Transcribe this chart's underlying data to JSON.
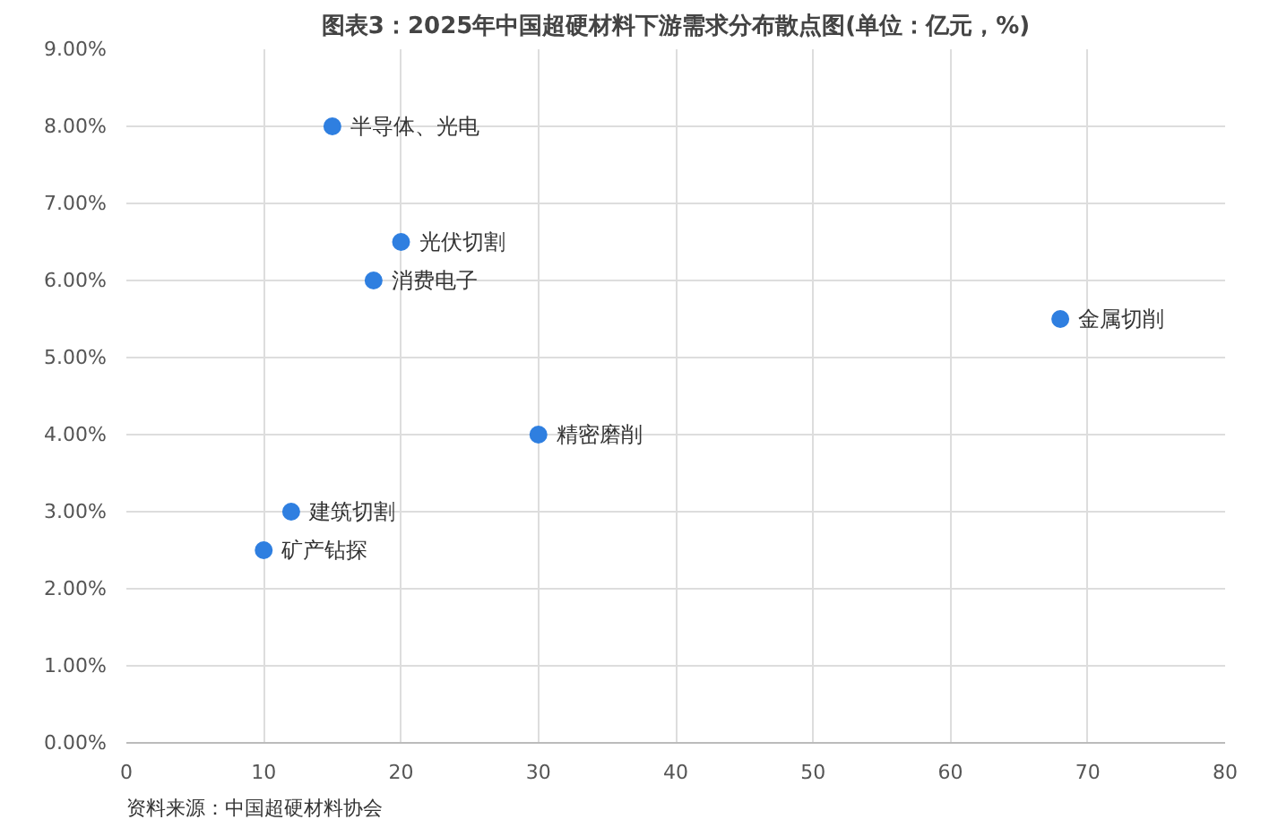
{
  "chart_data": {
    "type": "scatter",
    "title": "图表3：2025年中国超硬材料下游需求分布散点图(单位：亿元，%)",
    "x": [
      15,
      20,
      18,
      68,
      30,
      12,
      10
    ],
    "series": [
      {
        "color": "#2f7fe0",
        "values": [
          8.0,
          6.5,
          6.0,
          5.5,
          4.0,
          3.0,
          2.5
        ]
      }
    ],
    "xlim": [
      0,
      80
    ],
    "xticks": [
      0,
      10,
      20,
      30,
      40,
      50,
      60,
      70,
      80
    ],
    "ylim": [
      0,
      9
    ],
    "yticks": [
      {
        "value": 0,
        "label": "0.00%"
      },
      {
        "value": 1,
        "label": "1.00%"
      },
      {
        "value": 2,
        "label": "2.00%"
      },
      {
        "value": 3,
        "label": "3.00%"
      },
      {
        "value": 4,
        "label": "4.00%"
      },
      {
        "value": 5,
        "label": "5.00%"
      },
      {
        "value": 6,
        "label": "6.00%"
      },
      {
        "value": 7,
        "label": "7.00%"
      },
      {
        "value": 8,
        "label": "8.00%"
      },
      {
        "value": 9,
        "label": "9.00%"
      }
    ],
    "grid": true,
    "marker": "circle",
    "annotations": [
      {
        "text": "半导体、光电",
        "x": 15,
        "y": 8.0
      },
      {
        "text": "光伏切割",
        "x": 20,
        "y": 6.5
      },
      {
        "text": "消费电子",
        "x": 18,
        "y": 6.0
      },
      {
        "text": "金属切削",
        "x": 68,
        "y": 5.5
      },
      {
        "text": "精密磨削",
        "x": 30,
        "y": 4.0
      },
      {
        "text": "建筑切割",
        "x": 12,
        "y": 3.0
      },
      {
        "text": "矿产钻探",
        "x": 10,
        "y": 2.5
      },
      "资料来源：中国超硬材料协会"
    ]
  }
}
